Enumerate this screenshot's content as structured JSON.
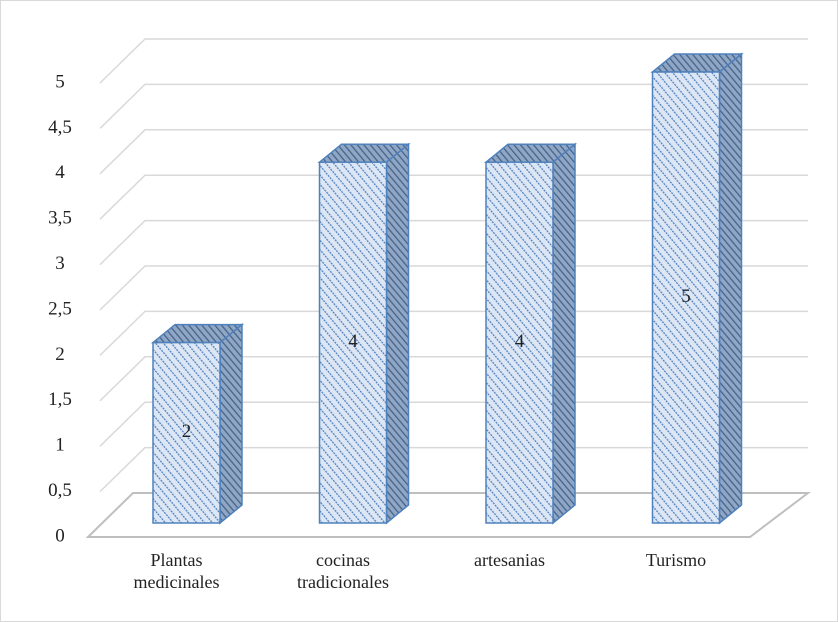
{
  "chart_data": {
    "type": "bar3d",
    "categories": [
      "Plantas medicinales",
      "cocinas tradicionales",
      "artesanias",
      "Turismo"
    ],
    "values": [
      2,
      4,
      4,
      5
    ],
    "color": "#4f81bd",
    "ylim": [
      0,
      5
    ],
    "yticks": [
      0,
      {
        "value": 0.5,
        "label": "0,5"
      },
      1,
      {
        "value": 1.5,
        "label": "1,5"
      },
      2,
      {
        "value": 2.5,
        "label": "2,5"
      },
      3,
      {
        "value": 3.5,
        "label": "3,5"
      },
      4,
      {
        "value": 4.5,
        "label": "4,5"
      },
      5
    ],
    "grid": true
  }
}
